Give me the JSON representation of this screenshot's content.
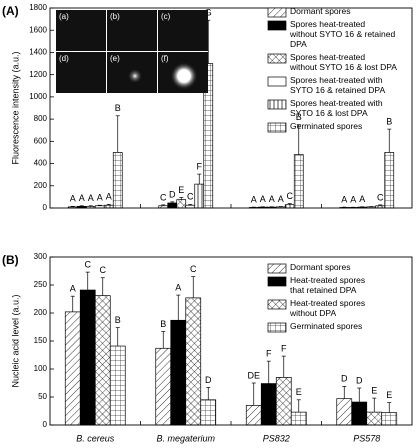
{
  "chart_data": [
    {
      "type": "bar",
      "panel": "(A)",
      "ylabel": "Fluorescence intensity (a.u.)",
      "ylim": [
        0,
        1800
      ],
      "yticks": [
        0,
        200,
        400,
        600,
        800,
        1000,
        1200,
        1400,
        1600,
        1800
      ],
      "inset_labels": [
        "(a)",
        "(b)",
        "(c)",
        "(d)",
        "(e)",
        "(f)"
      ],
      "series": [
        {
          "name": "Dormant spores",
          "pattern": "diag",
          "values": [
            10,
            20,
            5,
            5
          ],
          "errors": [
            5,
            8,
            3,
            3
          ],
          "letters": [
            "A",
            "C",
            "A",
            "A"
          ]
        },
        {
          "name": "Spores heat-treated without SYTO 16 & retained DPA",
          "pattern": "solid",
          "values": [
            15,
            45,
            8,
            5
          ],
          "errors": [
            5,
            10,
            3,
            2
          ],
          "letters": [
            "A",
            "D",
            "A",
            "A"
          ]
        },
        {
          "name": "Spores heat-treated without SYTO 16 & lost DPA",
          "pattern": "cross",
          "values": [
            15,
            75,
            8,
            8
          ],
          "errors": [
            5,
            20,
            3,
            3
          ],
          "letters": [
            "A",
            "E",
            "A",
            "A"
          ]
        },
        {
          "name": "Spores heat-treated with SYTO 16 & retained DPA",
          "pattern": "empty",
          "values": [
            20,
            25,
            10,
            10
          ],
          "errors": [
            5,
            8,
            3,
            3
          ],
          "letters": [
            "A",
            "C",
            "A",
            null
          ]
        },
        {
          "name": "Spores heat-treated with SYTO 16 & lost DPA",
          "pattern": "hlines",
          "values": [
            25,
            215,
            30,
            20
          ],
          "errors": [
            8,
            90,
            10,
            8
          ],
          "letters": [
            "A",
            "F",
            "C",
            "C"
          ]
        },
        {
          "name": "Germinated spores",
          "pattern": "grid",
          "values": [
            500,
            1300,
            480,
            500
          ],
          "errors": [
            330,
            390,
            270,
            210
          ],
          "letters": [
            "B",
            "G",
            "B",
            "B"
          ]
        }
      ]
    },
    {
      "type": "bar",
      "panel": "(B)",
      "ylabel": "Nucleic acid level (a.u.)",
      "ylim": [
        0,
        300
      ],
      "yticks": [
        0,
        50,
        100,
        150,
        200,
        250,
        300
      ],
      "categories": [
        "B. cereus",
        "B. megaterium",
        "PS832",
        "PS578"
      ],
      "series": [
        {
          "name": "Dormant spores",
          "pattern": "diag",
          "values": [
            202,
            137,
            35,
            47
          ],
          "errors": [
            28,
            30,
            40,
            22
          ],
          "letters": [
            "A",
            "B",
            "DE",
            "D"
          ]
        },
        {
          "name": "Heat-treated spores that retained DPA",
          "pattern": "solid",
          "values": [
            241,
            187,
            74,
            41
          ],
          "errors": [
            32,
            45,
            40,
            25
          ],
          "letters": [
            "C",
            "A",
            "F",
            "D"
          ]
        },
        {
          "name": "Heat-treated spores without DPA",
          "pattern": "cross",
          "values": [
            231,
            227,
            85,
            23
          ],
          "errors": [
            32,
            38,
            38,
            25
          ],
          "letters": [
            "C",
            "C",
            "F",
            "E"
          ]
        },
        {
          "name": "Germinated spores",
          "pattern": "grid",
          "values": [
            141,
            45,
            23,
            22
          ],
          "errors": [
            33,
            22,
            22,
            18
          ],
          "letters": [
            "B",
            "D",
            "E",
            "E"
          ]
        }
      ]
    }
  ]
}
